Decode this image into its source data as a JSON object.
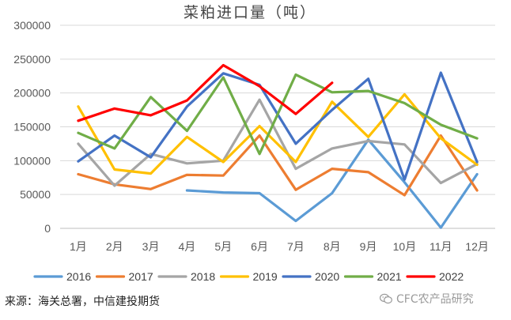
{
  "chart_data": {
    "type": "line",
    "title": "菜粕进口量（吨）",
    "categories": [
      "1月",
      "2月",
      "3月",
      "4月",
      "5月",
      "6月",
      "7月",
      "8月",
      "9月",
      "10月",
      "11月",
      "12月"
    ],
    "ylim": [
      0,
      300000
    ],
    "yticks": [
      0,
      50000,
      100000,
      150000,
      200000,
      250000,
      300000
    ],
    "grid": true,
    "legend_position": "bottom",
    "series": [
      {
        "name": "2016",
        "color": "#5b9bd5",
        "values": [
          null,
          null,
          null,
          56000,
          53000,
          52000,
          11000,
          52000,
          131000,
          68000,
          1000,
          80000
        ]
      },
      {
        "name": "2017",
        "color": "#ed7d31",
        "values": [
          80000,
          65000,
          58000,
          79000,
          78000,
          137000,
          57000,
          88000,
          83000,
          49000,
          137000,
          56000
        ]
      },
      {
        "name": "2018",
        "color": "#a5a5a5",
        "values": [
          125000,
          63000,
          110000,
          96000,
          100000,
          190000,
          88000,
          118000,
          129000,
          124000,
          67000,
          95000
        ]
      },
      {
        "name": "2019",
        "color": "#ffc000",
        "values": [
          180000,
          87000,
          81000,
          135000,
          98000,
          151000,
          98000,
          187000,
          135000,
          198000,
          133000,
          94000
        ]
      },
      {
        "name": "2020",
        "color": "#4472c4",
        "values": [
          99000,
          137000,
          105000,
          180000,
          229000,
          212000,
          125000,
          175000,
          221000,
          72000,
          230000,
          98000
        ]
      },
      {
        "name": "2021",
        "color": "#70ad47",
        "values": [
          141000,
          118000,
          194000,
          144000,
          223000,
          110000,
          227000,
          201000,
          203000,
          185000,
          153000,
          133000
        ]
      },
      {
        "name": "2022",
        "color": "#ff0000",
        "values": [
          159000,
          177000,
          167000,
          189000,
          241000,
          210000,
          169000,
          215000,
          null,
          null,
          null,
          null
        ]
      }
    ]
  },
  "footer": {
    "source": "来源：海关总署，中信建投期货",
    "watermark": "CFC农产品研究",
    "watermark_icon": "wechat-icon"
  }
}
